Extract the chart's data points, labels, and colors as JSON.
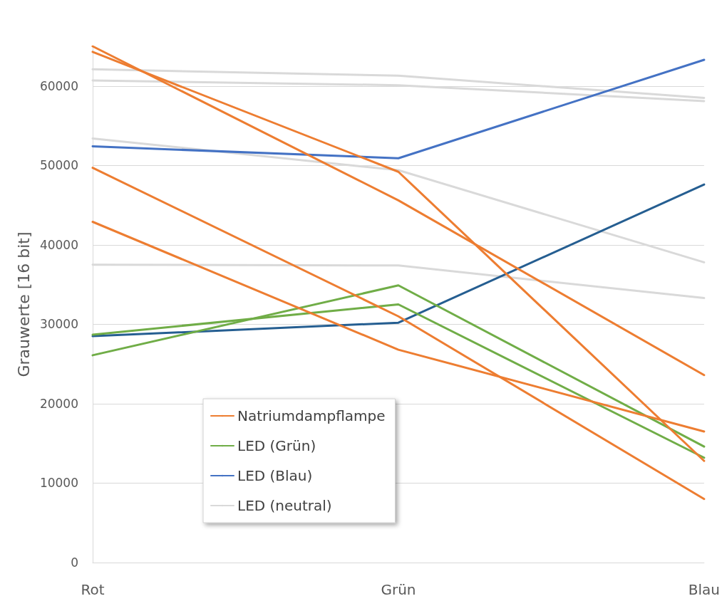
{
  "chart_data": {
    "type": "line",
    "ylabel": "Grauwerte [16 bit]",
    "categories": [
      "Rot",
      "Grün",
      "Blau"
    ],
    "ylim": [
      0,
      65000
    ],
    "yticks": [
      0,
      10000,
      20000,
      30000,
      40000,
      50000,
      60000
    ],
    "grid": "y",
    "legend": "bottom left",
    "marker": "none",
    "line_style": "solid",
    "series": [
      {
        "name": "LED (neutral)",
        "color": "#d9d9d9",
        "values": [
          62100,
          61300,
          58500
        ]
      },
      {
        "color": "#d9d9d9",
        "values": [
          60700,
          60100,
          58100
        ]
      },
      {
        "color": "#d9d9d9",
        "values": [
          53400,
          49400,
          37800
        ]
      },
      {
        "color": "#d9d9d9",
        "values": [
          37500,
          37400,
          33300
        ]
      },
      {
        "name": "LED (Blau)",
        "color": "#4472c4",
        "values": [
          52400,
          50900,
          63300
        ]
      },
      {
        "color": "#255e91",
        "values": [
          28500,
          30200,
          47600
        ]
      },
      {
        "name": "LED (Grün)",
        "color": "#70ad47",
        "values": [
          28700,
          32500,
          13200
        ]
      },
      {
        "color": "#70ad47",
        "values": [
          26100,
          34900,
          14600
        ]
      },
      {
        "name": "Natriumdampflampe",
        "color": "#ed7d31",
        "values": [
          65000,
          45600,
          23600
        ]
      },
      {
        "color": "#ed7d31",
        "values": [
          64300,
          49200,
          12800
        ]
      },
      {
        "color": "#ed7d31",
        "values": [
          49700,
          31000,
          8000
        ]
      },
      {
        "color": "#ed7d31",
        "values": [
          42900,
          26800,
          16500
        ]
      }
    ]
  }
}
